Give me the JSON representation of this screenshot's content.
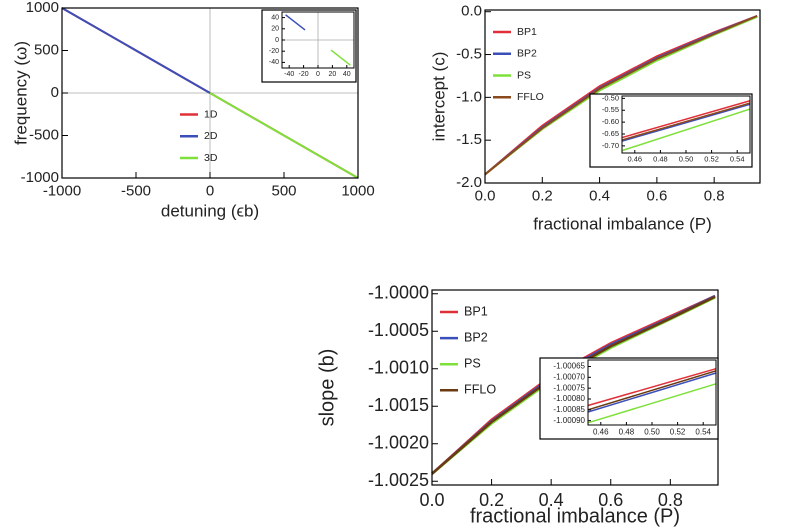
{
  "chart_data": [
    {
      "type": "line",
      "xlabel": "detuning (ϵb)",
      "ylabel": "frequency (ω)",
      "xlim": [
        -1000,
        1000
      ],
      "ylim": [
        -1000,
        1000
      ],
      "xticks": [
        -1000,
        -500,
        0,
        500,
        1000
      ],
      "yticks": [
        -1000,
        -500,
        0,
        500,
        1000
      ],
      "zero_lines": true,
      "legend": "lower-left",
      "series": [
        {
          "name": "1D",
          "color": "#e0303a",
          "x": [
            -1000,
            1000
          ],
          "values": [
            1000,
            -1000
          ]
        },
        {
          "name": "2D",
          "color": "#3b4fb8",
          "x": [
            -1000,
            0
          ],
          "values": [
            1000,
            0
          ]
        },
        {
          "name": "3D",
          "color": "#7ee03a",
          "x": [
            0,
            1000
          ],
          "values": [
            0,
            -1000
          ]
        }
      ]
    },
    {
      "type": "line",
      "xlim": [
        -50,
        50
      ],
      "ylim": [
        -50,
        50
      ],
      "xticks": [
        -40,
        -20,
        0,
        20,
        40
      ],
      "yticks": [
        -40,
        -20,
        0,
        20,
        40
      ],
      "zero_lines": true,
      "series": [
        {
          "color": "#3b4fb8",
          "x": [
            -45,
            -18
          ],
          "values": [
            45,
            18
          ]
        },
        {
          "color": "#7ee03a",
          "x": [
            18,
            45
          ],
          "values": [
            -18,
            -45
          ]
        }
      ]
    },
    {
      "type": "line",
      "xlabel": "fractional imbalance (P)",
      "ylabel": "intercept (c)",
      "xlim": [
        0,
        0.96
      ],
      "ylim": [
        -2.0,
        0.02
      ],
      "xticks": [
        {
          "value": 0,
          "label": "0.0"
        },
        0.2,
        0.4,
        0.6,
        0.8
      ],
      "yticks": [
        {
          "value": -2,
          "label": "-2.0"
        },
        -1.5,
        {
          "value": -1,
          "label": "-1.0"
        },
        -0.5,
        {
          "value": 0,
          "label": "0.0"
        }
      ],
      "legend": "upper-left",
      "x": [
        0,
        0.2,
        0.4,
        0.6,
        0.8,
        0.95
      ],
      "series": [
        {
          "name": "BP1",
          "color": "#e0303a",
          "values": [
            -1.9,
            -1.33,
            -0.87,
            -0.52,
            -0.24,
            -0.05
          ]
        },
        {
          "name": "BP2",
          "color": "#3b4fb8",
          "values": [
            -1.9,
            -1.35,
            -0.89,
            -0.54,
            -0.25,
            -0.05
          ]
        },
        {
          "name": "PS",
          "color": "#7ee03a",
          "values": [
            -1.9,
            -1.37,
            -0.92,
            -0.57,
            -0.27,
            -0.06
          ]
        },
        {
          "name": "FFLO",
          "color": "#8b4a1e",
          "values": [
            -1.9,
            -1.36,
            -0.9,
            -0.55,
            -0.26,
            -0.05
          ]
        }
      ]
    },
    {
      "type": "line",
      "xlim": [
        0.45,
        0.55
      ],
      "ylim": [
        -0.73,
        -0.49
      ],
      "xticks": [
        0.46,
        0.48,
        {
          "value": 0.5,
          "label": "0.50"
        },
        0.52,
        0.54
      ],
      "yticks": [
        {
          "value": -0.7,
          "label": "-0.70"
        },
        -0.65,
        {
          "value": -0.6,
          "label": "-0.60"
        },
        -0.55,
        {
          "value": -0.5,
          "label": "-0.50"
        }
      ],
      "x": [
        0.45,
        0.55
      ],
      "series": [
        {
          "color": "#e0303a",
          "values": [
            -0.665,
            -0.51
          ]
        },
        {
          "color": "#3b4fb8",
          "values": [
            -0.68,
            -0.525
          ]
        },
        {
          "color": "#7ee03a",
          "values": [
            -0.72,
            -0.545
          ]
        },
        {
          "color": "#8b4a1e",
          "values": [
            -0.675,
            -0.52
          ]
        }
      ]
    },
    {
      "type": "line",
      "xlabel": "fractional imbalance (P)",
      "ylabel": "slope (b)",
      "xlim": [
        0,
        0.96
      ],
      "ylim": [
        -1.00255,
        -0.99995
      ],
      "xticks": [
        {
          "value": 0,
          "label": "0.0"
        },
        0.2,
        0.4,
        0.6,
        0.8
      ],
      "yticks": [
        -1.0025,
        {
          "value": -1.002,
          "label": "-1.0020"
        },
        -1.0015,
        {
          "value": -1.001,
          "label": "-1.0010"
        },
        -1.0005,
        {
          "value": -1,
          "label": "-1.0000"
        }
      ],
      "legend": "upper-left",
      "x": [
        0,
        0.2,
        0.4,
        0.6,
        0.8,
        0.95
      ],
      "series": [
        {
          "name": "BP1",
          "color": "#e0303a",
          "values": [
            -1.0024,
            -1.00168,
            -1.0011,
            -1.00066,
            -1.0003,
            -1.00003
          ]
        },
        {
          "name": "BP2",
          "color": "#3b4fb8",
          "values": [
            -1.0024,
            -1.0017,
            -1.00112,
            -1.00068,
            -1.00032,
            -1.00003
          ]
        },
        {
          "name": "PS",
          "color": "#7ee03a",
          "values": [
            -1.0024,
            -1.00173,
            -1.00116,
            -1.00072,
            -1.00034,
            -1.00005
          ]
        },
        {
          "name": "FFLO",
          "color": "#6b3a10",
          "values": [
            -1.0024,
            -1.00171,
            -1.00114,
            -1.0007,
            -1.00033,
            -1.00004
          ]
        }
      ]
    },
    {
      "type": "line",
      "xlim": [
        0.45,
        0.55
      ],
      "ylim": [
        -1.00092,
        -1.00062
      ],
      "xticks": [
        0.46,
        0.48,
        {
          "value": 0.5,
          "label": "0.50"
        },
        0.52,
        0.54
      ],
      "yticks": [
        -1.00065,
        {
          "value": -1.0007,
          "label": "-1.00070"
        },
        -1.00075,
        {
          "value": -1.0008,
          "label": "-1.00080"
        },
        -1.00085,
        {
          "value": -1.0009,
          "label": "-1.00090"
        }
      ],
      "x": [
        0.45,
        0.55
      ],
      "series": [
        {
          "color": "#e0303a",
          "values": [
            -1.00083,
            -1.00066
          ]
        },
        {
          "color": "#3b4fb8",
          "values": [
            -1.00086,
            -1.00068
          ]
        },
        {
          "color": "#7ee03a",
          "values": [
            -1.00091,
            -1.00073
          ]
        },
        {
          "color": "#6b3a10",
          "values": [
            -1.00085,
            -1.00067
          ]
        }
      ]
    }
  ]
}
